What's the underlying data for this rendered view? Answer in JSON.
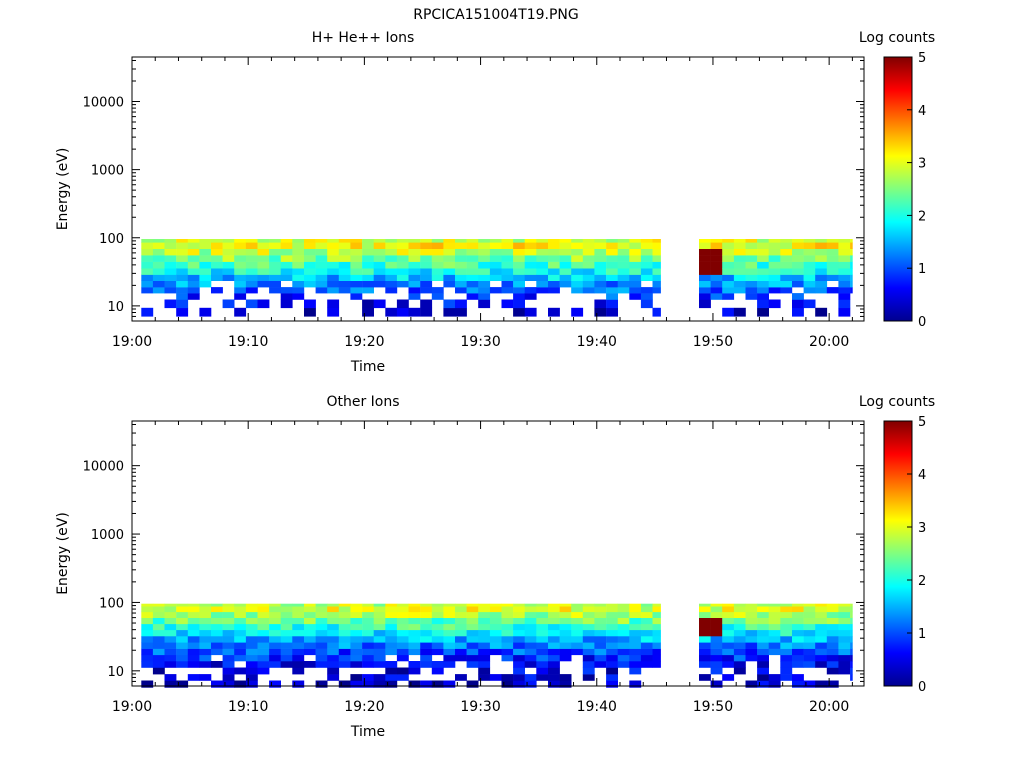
{
  "figure": {
    "title": "RPCICA151004T19.PNG"
  },
  "colorbar": {
    "label": "Log counts",
    "min": 0,
    "max": 5,
    "ticks": [
      "0",
      "1",
      "2",
      "3",
      "4",
      "5"
    ]
  },
  "chart_data": [
    {
      "type": "heatmap",
      "title": "H+ He++ Ions",
      "xlabel": "Time",
      "ylabel": "Energy (eV)",
      "x_ticks": [
        "19:00",
        "19:10",
        "19:20",
        "19:30",
        "19:40",
        "19:50",
        "20:00"
      ],
      "y_ticks": [
        "10",
        "100",
        "1000",
        "10000"
      ],
      "xlim_minutes": [
        0,
        63
      ],
      "ylim": [
        6,
        45000
      ],
      "y_scale": "log",
      "data_gap": [
        "19:45.5",
        "19:48.8"
      ],
      "energy_bins": [
        8,
        11,
        14,
        17,
        21,
        26,
        32,
        40,
        50,
        62,
        77,
        96
      ],
      "typical_log_counts_by_bin": [
        0.4,
        0.6,
        0.9,
        1.1,
        1.3,
        1.6,
        1.9,
        2.2,
        2.5,
        2.8,
        3.1,
        2.9
      ],
      "hot_spot": {
        "time": "19:49",
        "energy_range": [
          30,
          75
        ],
        "log_counts": 5
      }
    },
    {
      "type": "heatmap",
      "title": "Other Ions",
      "xlabel": "Time",
      "ylabel": "Energy (eV)",
      "x_ticks": [
        "19:00",
        "19:10",
        "19:20",
        "19:30",
        "19:40",
        "19:50",
        "20:00"
      ],
      "y_ticks": [
        "10",
        "100",
        "1000",
        "10000"
      ],
      "xlim_minutes": [
        0,
        63
      ],
      "ylim": [
        6,
        45000
      ],
      "y_scale": "log",
      "data_gap": [
        "19:45.5",
        "19:48.8"
      ],
      "energy_bins": [
        6.5,
        8,
        10,
        12.5,
        15.5,
        19,
        23.5,
        29,
        36,
        44,
        54,
        66,
        81,
        96
      ],
      "typical_log_counts_by_bin": [
        0.3,
        0.4,
        0.5,
        0.6,
        0.8,
        1.0,
        1.2,
        1.5,
        1.8,
        2.1,
        2.4,
        2.7,
        3.0,
        2.8
      ],
      "hot_spot": {
        "time": "19:49",
        "energy_range": [
          30,
          65
        ],
        "log_counts": 5
      }
    }
  ]
}
